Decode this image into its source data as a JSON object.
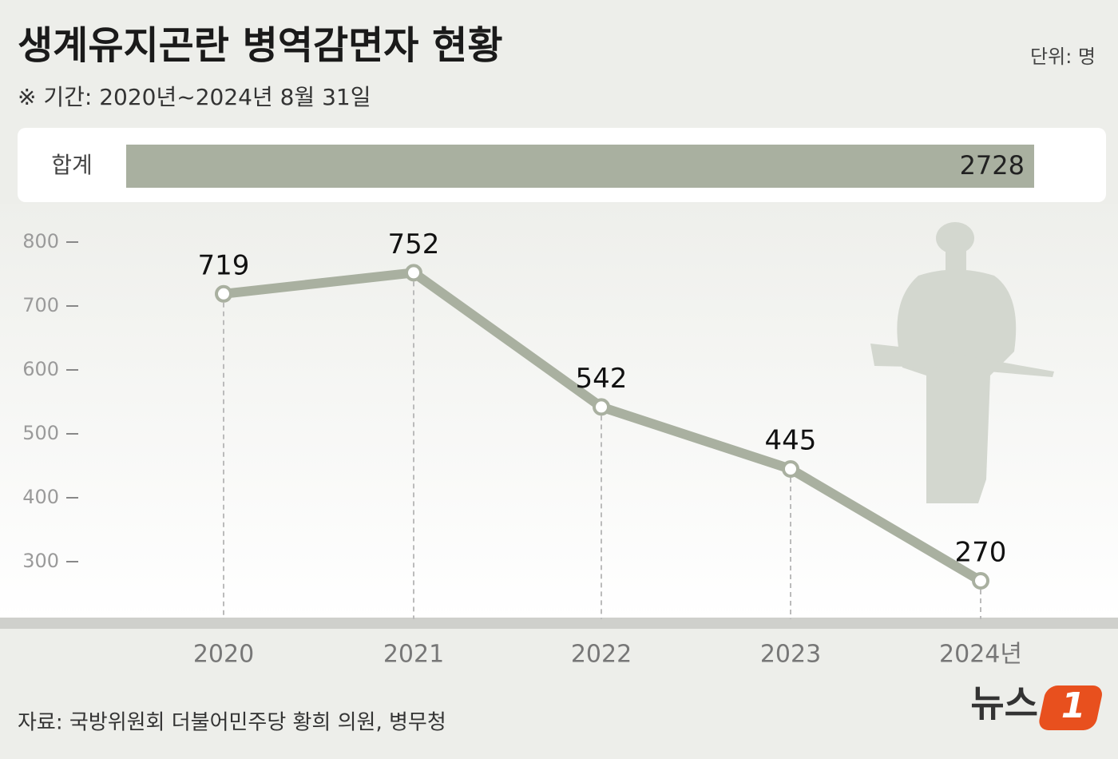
{
  "chart_data": {
    "type": "line",
    "title": "생계유지곤란 병역감면자 현황",
    "subtitle": "※ 기간: 2020년~2024년 8월 31일",
    "unit": "단위: 명",
    "total": {
      "label": "합계",
      "value": 2728
    },
    "categories": [
      "2020",
      "2021",
      "2022",
      "2023",
      "2024년"
    ],
    "values": [
      719,
      752,
      542,
      445,
      270
    ],
    "color": "#a9b0a0",
    "ylim": [
      210,
      850
    ],
    "yticks": [
      300,
      400,
      500,
      600,
      700,
      800
    ],
    "source": "자료: 국방위원회 더불어민주당 황희 의원, 병무청",
    "logo": {
      "text": "뉴스",
      "mark": "1"
    }
  }
}
